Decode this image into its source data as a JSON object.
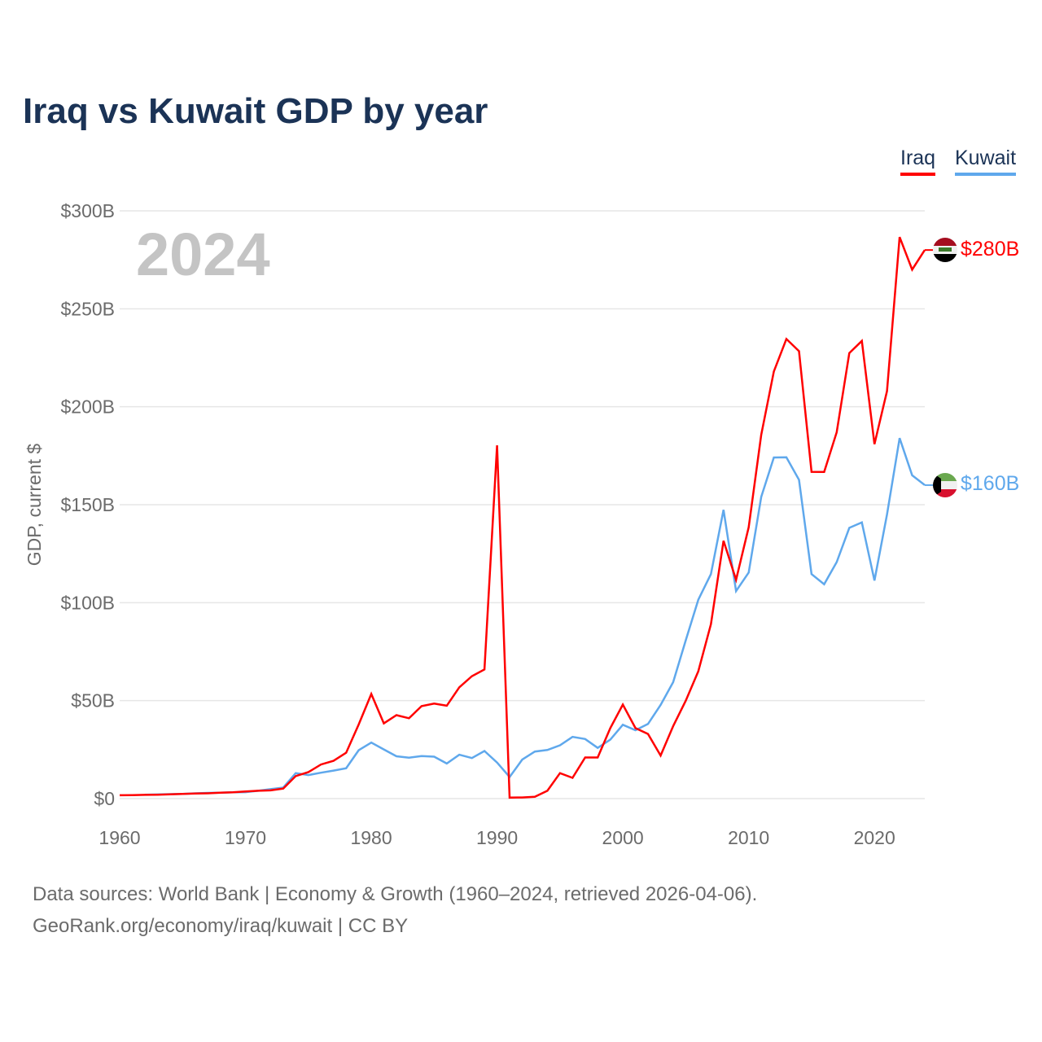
{
  "title": "Iraq vs Kuwait GDP by year",
  "footer": {
    "line1": "Data sources: World Bank | Economy & Growth (1960–2024, retrieved 2026-04-06).",
    "line2": "GeoRank.org/economy/iraq/kuwait | CC BY"
  },
  "chart_data": {
    "type": "line",
    "title": "Iraq vs Kuwait GDP by year",
    "xlabel": "",
    "ylabel": "GDP, current $",
    "year_label": "2024",
    "xlim": [
      1960,
      2024
    ],
    "ylim": [
      0,
      300
    ],
    "x_ticks": [
      1960,
      1970,
      1980,
      1990,
      2000,
      2010,
      2020
    ],
    "y_ticks": [
      0,
      50,
      100,
      150,
      200,
      250,
      300
    ],
    "y_tick_labels": [
      "$0",
      "$50B",
      "$100B",
      "$150B",
      "$200B",
      "$250B",
      "$300B"
    ],
    "grid": true,
    "legend_position": "top-right",
    "series": [
      {
        "name": "Iraq",
        "color": "#ff0000",
        "end_label": "$280B",
        "flag": "iraq-flag",
        "start_year": 1960,
        "values": [
          1.7,
          1.8,
          1.9,
          2.0,
          2.2,
          2.4,
          2.6,
          2.7,
          3.0,
          3.2,
          3.6,
          4.0,
          4.2,
          5.1,
          11.5,
          13.5,
          17.4,
          19.3,
          23.4,
          37.8,
          53.4,
          38.4,
          42.6,
          41.0,
          47.2,
          48.5,
          47.4,
          56.8,
          62.5,
          65.9,
          180.3,
          0.5,
          0.6,
          0.9,
          4.0,
          13.0,
          10.6,
          21.0,
          21.0,
          36.0,
          48.0,
          36.0,
          33.0,
          22.0,
          37.0,
          50.0,
          65.0,
          89.0,
          131.6,
          111.7,
          138.5,
          185.7,
          218.0,
          234.6,
          228.4,
          166.8,
          166.7,
          187.0,
          227.4,
          233.6,
          180.9,
          208.0,
          286.6,
          270.0,
          280.0
        ]
      },
      {
        "name": "Kuwait",
        "color": "#5fa8ec",
        "end_label": "$160B",
        "flag": "kuwait-flag",
        "start_year": 1962,
        "values": [
          2.0,
          2.1,
          2.3,
          2.4,
          2.7,
          2.9,
          3.0,
          3.2,
          3.3,
          4.0,
          4.8,
          5.6,
          13.0,
          12.0,
          13.2,
          14.3,
          15.5,
          24.7,
          28.6,
          25.1,
          21.6,
          20.9,
          21.7,
          21.4,
          17.9,
          22.4,
          20.7,
          24.3,
          18.4,
          11.0,
          19.9,
          24.0,
          24.8,
          27.2,
          31.5,
          30.4,
          25.9,
          30.1,
          37.7,
          34.9,
          38.1,
          47.8,
          59.4,
          80.8,
          101.5,
          114.6,
          147.4,
          105.9,
          115.4,
          154.0,
          174.1,
          174.2,
          162.7,
          114.6,
          109.4,
          120.7,
          138.2,
          141.0,
          111.3,
          145.0,
          184.0,
          165.0,
          160.0
        ]
      }
    ]
  }
}
